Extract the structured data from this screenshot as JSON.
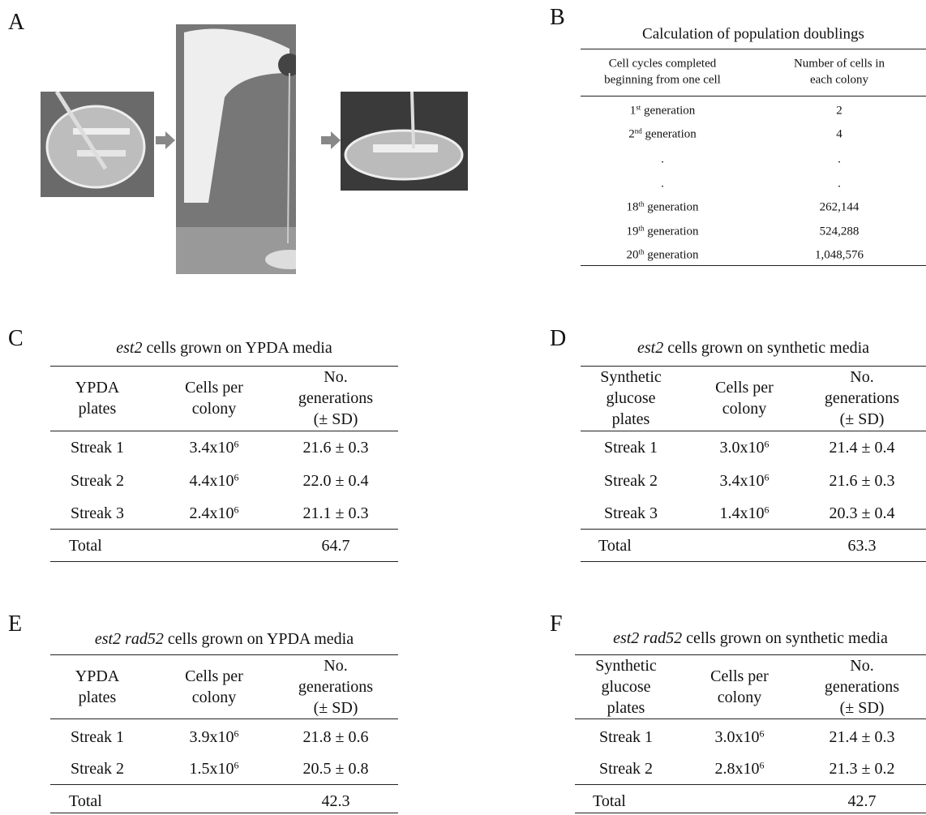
{
  "panel_a": {
    "label": "A"
  },
  "panel_b": {
    "label": "B",
    "title": "Calculation of population doublings",
    "headers": [
      [
        "Cell cycles completed",
        "beginning from one cell"
      ],
      [
        "Number of cells in",
        "each colony"
      ]
    ],
    "rows": [
      [
        {
          "base": "1",
          "sup": "st",
          "tail": " generation"
        },
        "2"
      ],
      [
        {
          "base": "2",
          "sup": "nd",
          "tail": " generation"
        },
        "4"
      ],
      [
        ".",
        "."
      ],
      [
        ".",
        "."
      ],
      [
        {
          "base": "18",
          "sup": "th",
          "tail": " generation"
        },
        "262,144"
      ],
      [
        {
          "base": "19",
          "sup": "th",
          "tail": " generation"
        },
        "524,288"
      ],
      [
        {
          "base": "20",
          "sup": "th",
          "tail": " generation"
        },
        "1,048,576"
      ]
    ]
  },
  "panel_c": {
    "label": "C",
    "title": {
      "italic": "est2",
      "text": " cells grown on YPDA media"
    },
    "headers": [
      [
        "YPDA",
        "plates"
      ],
      [
        "Cells per",
        "colony"
      ],
      [
        "No.",
        "generations",
        "(± SD)"
      ]
    ],
    "rows": [
      [
        "Streak 1",
        {
          "base": "3.4x10",
          "sup": "6"
        },
        "21.6 ± 0.3"
      ],
      [
        "Streak 2",
        {
          "base": "4.4x10",
          "sup": "6"
        },
        "22.0 ± 0.4"
      ],
      [
        "Streak 3",
        {
          "base": "2.4x10",
          "sup": "6"
        },
        "21.1 ± 0.3"
      ]
    ],
    "total": {
      "label": "Total",
      "value": "64.7"
    }
  },
  "panel_d": {
    "label": "D",
    "title": {
      "italic": "est2",
      "text": " cells grown on synthetic media"
    },
    "headers": [
      [
        "Synthetic",
        "glucose",
        "plates"
      ],
      [
        "Cells per",
        "colony"
      ],
      [
        "No.",
        "generations",
        "(± SD)"
      ]
    ],
    "rows": [
      [
        "Streak 1",
        {
          "base": "3.0x10",
          "sup": "6"
        },
        "21.4 ± 0.4"
      ],
      [
        "Streak 2",
        {
          "base": "3.4x10",
          "sup": "6"
        },
        "21.6 ± 0.3"
      ],
      [
        "Streak 3",
        {
          "base": "1.4x10",
          "sup": "6"
        },
        "20.3 ± 0.4"
      ]
    ],
    "total": {
      "label": "Total",
      "value": "63.3"
    }
  },
  "panel_e": {
    "label": "E",
    "title": {
      "italic": "est2 rad52",
      "text": " cells grown on YPDA media"
    },
    "headers": [
      [
        "YPDA",
        "plates"
      ],
      [
        "Cells per",
        "colony"
      ],
      [
        "No.",
        "generations",
        "(± SD)"
      ]
    ],
    "rows": [
      [
        "Streak 1",
        {
          "base": "3.9x10",
          "sup": "6"
        },
        "21.8 ± 0.6"
      ],
      [
        "Streak 2",
        {
          "base": "1.5x10",
          "sup": "6"
        },
        "20.5 ± 0.8"
      ]
    ],
    "total": {
      "label": "Total",
      "value": "42.3"
    }
  },
  "panel_f": {
    "label": "F",
    "title": {
      "italic": "est2 rad52",
      "text": " cells grown on synthetic media"
    },
    "headers": [
      [
        "Synthetic",
        "glucose",
        "plates"
      ],
      [
        "Cells per",
        "colony"
      ],
      [
        "No.",
        "generations",
        "(± SD)"
      ]
    ],
    "rows": [
      [
        "Streak 1",
        {
          "base": "3.0x10",
          "sup": "6"
        },
        "21.4 ± 0.3"
      ],
      [
        "Streak 2",
        {
          "base": "2.8x10",
          "sup": "6"
        },
        "21.3 ± 0.2"
      ]
    ],
    "total": {
      "label": "Total",
      "value": "42.7"
    }
  }
}
